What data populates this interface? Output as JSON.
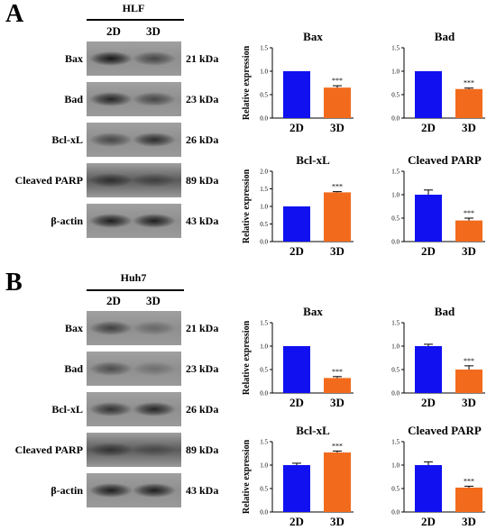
{
  "panelA": {
    "letter": "A",
    "cell_line": "HLF",
    "lanes": [
      "2D",
      "3D"
    ],
    "blots": [
      {
        "protein": "Bax",
        "kda": "21 kDa",
        "bands": [
          0.9,
          0.55
        ]
      },
      {
        "protein": "Bad",
        "kda": "23 kDa",
        "bands": [
          0.8,
          0.55
        ]
      },
      {
        "protein": "Bcl-xL",
        "kda": "26 kDa",
        "bands": [
          0.55,
          0.75
        ]
      },
      {
        "protein": "Cleaved PARP",
        "kda": "89 kDa",
        "bands": [
          0.55,
          0.35
        ]
      },
      {
        "protein": "β-actin",
        "kda": "43 kDa",
        "bands": [
          0.85,
          0.85
        ]
      }
    ]
  },
  "panelB": {
    "letter": "B",
    "cell_line": "Huh7",
    "lanes": [
      "2D",
      "3D"
    ],
    "blots": [
      {
        "protein": "Bax",
        "kda": "21 kDa",
        "bands": [
          0.6,
          0.3
        ]
      },
      {
        "protein": "Bad",
        "kda": "23 kDa",
        "bands": [
          0.5,
          0.25
        ]
      },
      {
        "protein": "Bcl-xL",
        "kda": "26 kDa",
        "bands": [
          0.7,
          0.8
        ]
      },
      {
        "protein": "Cleaved PARP",
        "kda": "89 kDa",
        "bands": [
          0.5,
          0.25
        ]
      },
      {
        "protein": "β-actin",
        "kda": "43 kDa",
        "bands": [
          0.85,
          0.85
        ]
      }
    ]
  },
  "chart_data": [
    {
      "type": "bar",
      "title": "Bax",
      "categories": [
        "2D",
        "3D"
      ],
      "values": [
        1.0,
        0.65
      ],
      "errors": [
        0.0,
        0.04
      ],
      "significance": [
        "",
        "***"
      ],
      "ylabel": "Relative expression",
      "ylim": [
        0,
        1.5
      ],
      "yticks": [
        "0.0",
        "0.5",
        "1.0",
        "1.5"
      ],
      "colors": [
        "#1010f0",
        "#f26b1d"
      ]
    },
    {
      "type": "bar",
      "title": "Bad",
      "categories": [
        "2D",
        "3D"
      ],
      "values": [
        1.0,
        0.62
      ],
      "errors": [
        0.0,
        0.02
      ],
      "significance": [
        "",
        "***"
      ],
      "ylabel": "",
      "ylim": [
        0,
        1.5
      ],
      "yticks": [
        "0.0",
        "0.5",
        "1.0",
        "1.5"
      ],
      "colors": [
        "#1010f0",
        "#f26b1d"
      ]
    },
    {
      "type": "bar",
      "title": "Bcl-xL",
      "categories": [
        "2D",
        "3D"
      ],
      "values": [
        1.0,
        1.4
      ],
      "errors": [
        0.0,
        0.02
      ],
      "significance": [
        "",
        "***"
      ],
      "ylabel": "Relative expression",
      "ylim": [
        0,
        2.0
      ],
      "yticks": [
        "0.0",
        "0.5",
        "1.0",
        "1.5",
        "2.0"
      ],
      "colors": [
        "#1010f0",
        "#f26b1d"
      ]
    },
    {
      "type": "bar",
      "title": "Cleaved PARP",
      "categories": [
        "2D",
        "3D"
      ],
      "values": [
        1.0,
        0.45
      ],
      "errors": [
        0.1,
        0.05
      ],
      "significance": [
        "",
        "***"
      ],
      "ylabel": "",
      "ylim": [
        0,
        1.5
      ],
      "yticks": [
        "0.0",
        "0.5",
        "1.0",
        "1.5"
      ],
      "colors": [
        "#1010f0",
        "#f26b1d"
      ]
    },
    {
      "type": "bar",
      "title": "Bax",
      "categories": [
        "2D",
        "3D"
      ],
      "values": [
        1.0,
        0.32
      ],
      "errors": [
        0.0,
        0.03
      ],
      "significance": [
        "",
        "***"
      ],
      "ylabel": "Relative expression",
      "ylim": [
        0,
        1.5
      ],
      "yticks": [
        "0.0",
        "0.5",
        "1.0",
        "1.5"
      ],
      "colors": [
        "#1010f0",
        "#f26b1d"
      ]
    },
    {
      "type": "bar",
      "title": "Bad",
      "categories": [
        "2D",
        "3D"
      ],
      "values": [
        1.0,
        0.5
      ],
      "errors": [
        0.04,
        0.08
      ],
      "significance": [
        "",
        "***"
      ],
      "ylabel": "",
      "ylim": [
        0,
        1.5
      ],
      "yticks": [
        "0.0",
        "0.5",
        "1.0",
        "1.5"
      ],
      "colors": [
        "#1010f0",
        "#f26b1d"
      ]
    },
    {
      "type": "bar",
      "title": "Bcl-xL",
      "categories": [
        "2D",
        "3D"
      ],
      "values": [
        1.0,
        1.27
      ],
      "errors": [
        0.04,
        0.03
      ],
      "significance": [
        "",
        "***"
      ],
      "ylabel": "Relative expression",
      "ylim": [
        0,
        1.5
      ],
      "yticks": [
        "0.0",
        "0.5",
        "1.0",
        "1.5"
      ],
      "colors": [
        "#1010f0",
        "#f26b1d"
      ]
    },
    {
      "type": "bar",
      "title": "Cleaved PARP",
      "categories": [
        "2D",
        "3D"
      ],
      "values": [
        1.0,
        0.52
      ],
      "errors": [
        0.07,
        0.03
      ],
      "significance": [
        "",
        "***"
      ],
      "ylabel": "",
      "ylim": [
        0,
        1.5
      ],
      "yticks": [
        "0.0",
        "0.5",
        "1.0",
        "1.5"
      ],
      "colors": [
        "#1010f0",
        "#f26b1d"
      ]
    }
  ]
}
